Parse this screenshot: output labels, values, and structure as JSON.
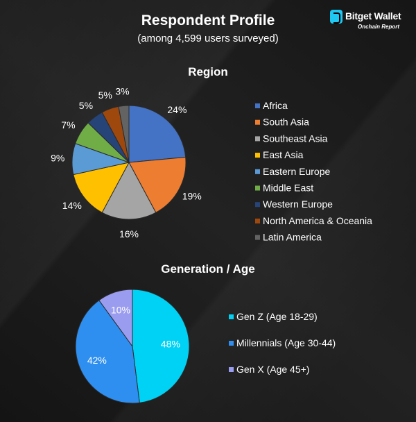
{
  "header": {
    "title": "Respondent Profile",
    "subtitle": "(among 4,599 users surveyed)"
  },
  "brand": {
    "name": "Bitget Wallet",
    "tagline": "Onchain Report",
    "color": "#1ec8f2",
    "icon": "bitget-logo-icon"
  },
  "chart_data": [
    {
      "type": "pie",
      "title": "Region",
      "legend_position": "right",
      "categories": [
        "Africa",
        "South Asia",
        "Southeast Asia",
        "East Asia",
        "Eastern Europe",
        "Middle East",
        "Western Europe",
        "North America & Oceania",
        "Latin America"
      ],
      "values": [
        24,
        19,
        16,
        14,
        9,
        7,
        5,
        5,
        3
      ],
      "labels": [
        "24%",
        "19%",
        "16%",
        "14%",
        "9%",
        "7%",
        "5%",
        "5%",
        "3%"
      ],
      "colors": [
        "#4472c4",
        "#ed7d31",
        "#a5a5a5",
        "#ffc000",
        "#5b9bd5",
        "#70ad47",
        "#264478",
        "#9e480e",
        "#636363"
      ]
    },
    {
      "type": "pie",
      "title": "Generation / Age",
      "legend_position": "right",
      "categories": [
        "Gen Z (Age 18-29)",
        "Millennials (Age 30-44)",
        "Gen X (Age 45+)"
      ],
      "values": [
        48,
        42,
        10
      ],
      "labels": [
        "48%",
        "42%",
        "10%"
      ],
      "colors": [
        "#00d2f5",
        "#2e8ff0",
        "#9a9cf0"
      ]
    }
  ]
}
